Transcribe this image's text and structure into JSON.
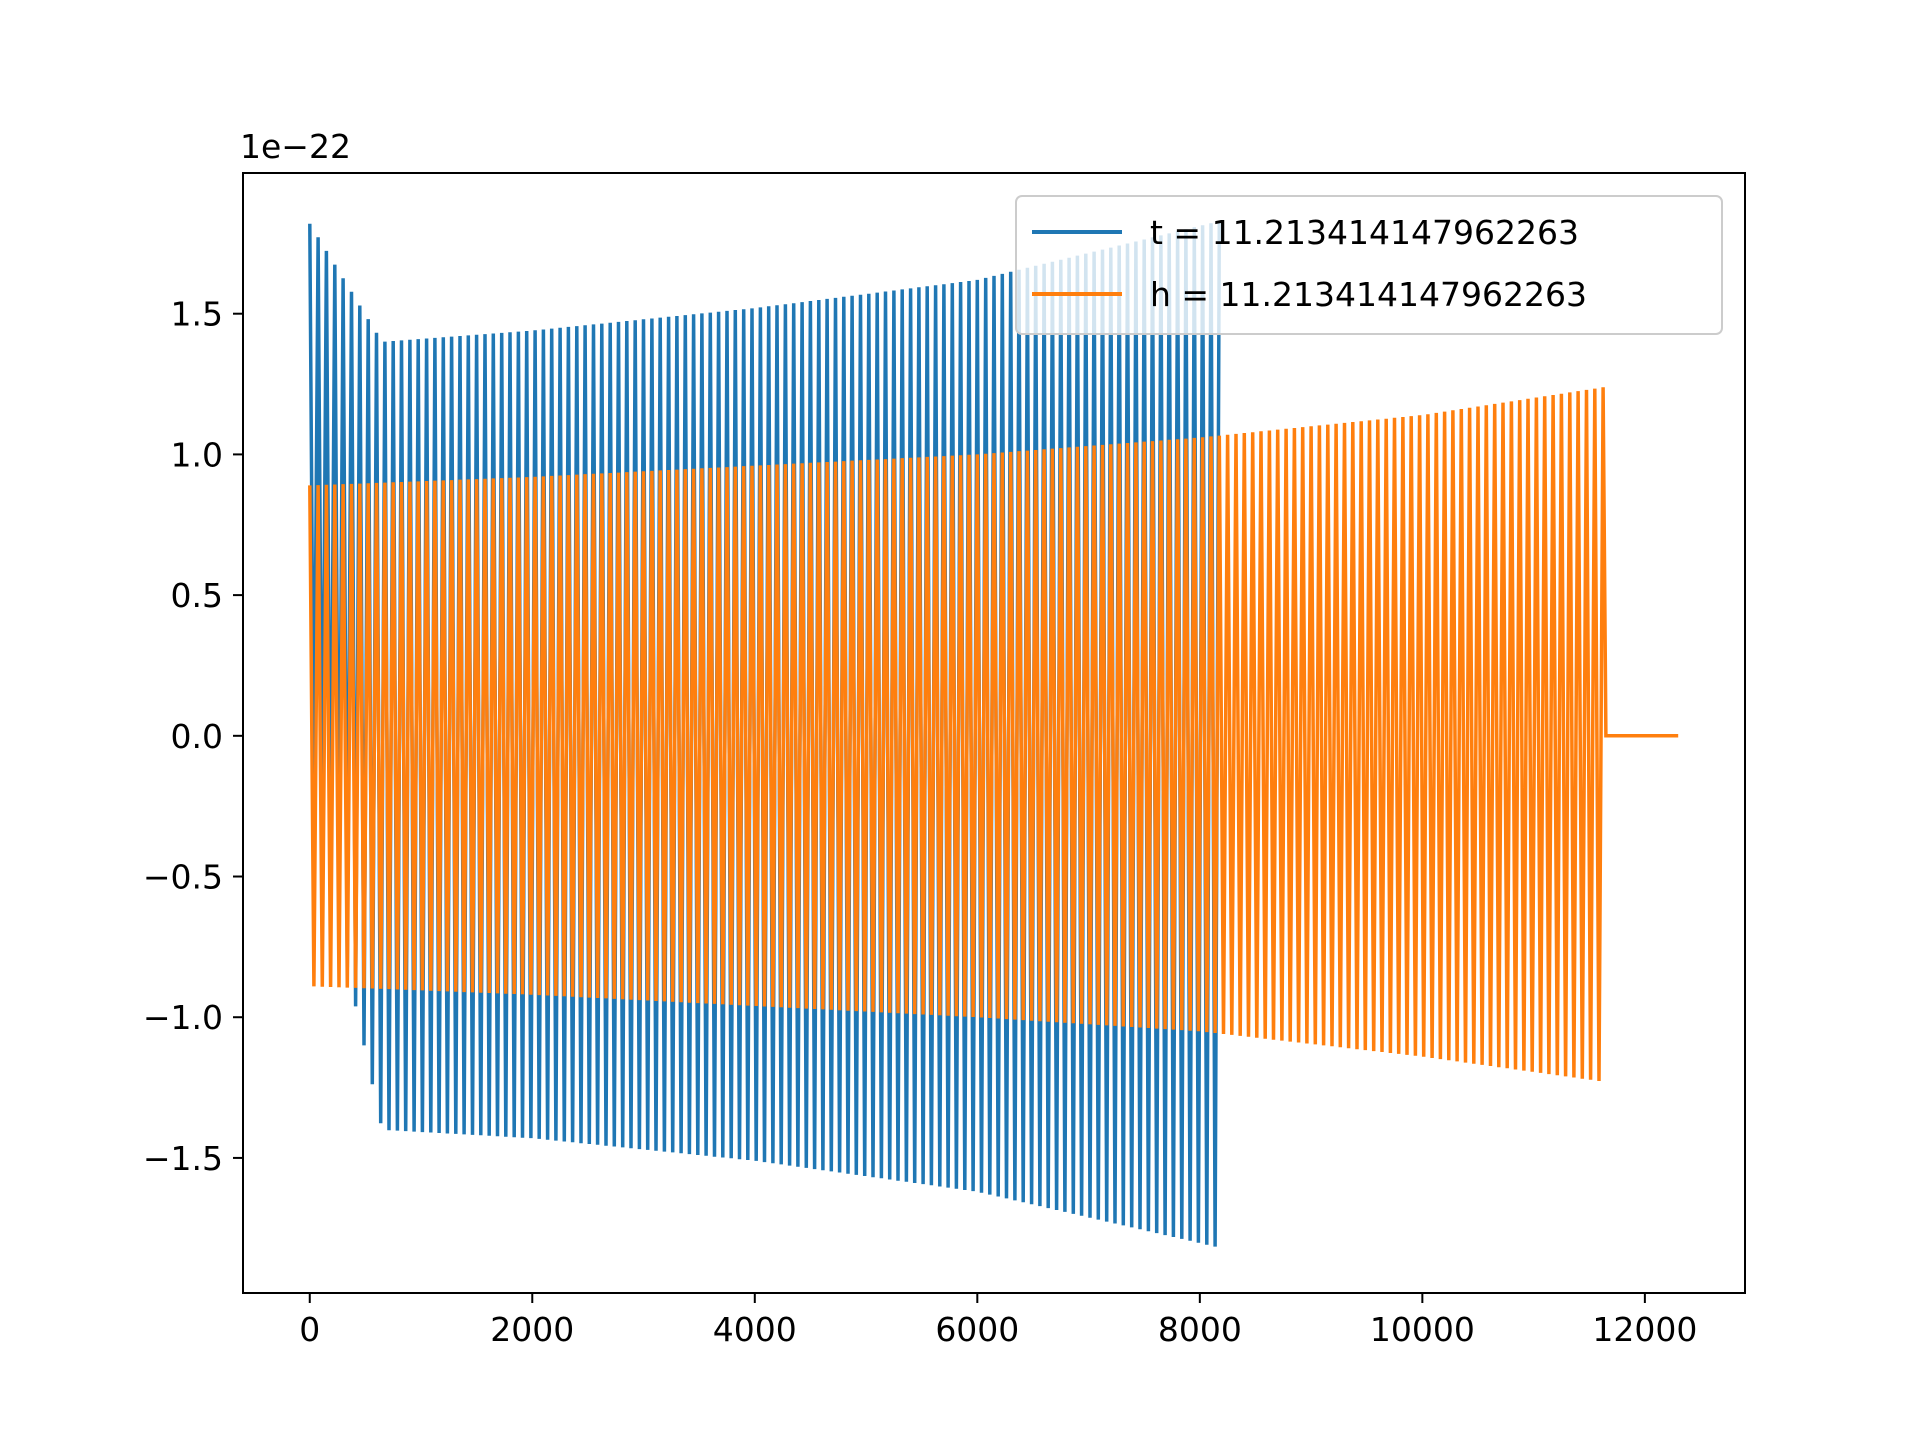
{
  "chart_data": {
    "type": "line",
    "title": "",
    "xlabel": "",
    "ylabel": "",
    "y_offset_label": "1e−22",
    "xlim": [
      -600,
      12900
    ],
    "ylim": [
      -1.98,
      2.0
    ],
    "x_ticks": [
      0,
      2000,
      4000,
      6000,
      8000,
      10000,
      12000
    ],
    "x_tick_labels": [
      "0",
      "2000",
      "4000",
      "6000",
      "8000",
      "10000",
      "12000"
    ],
    "y_ticks": [
      -1.5,
      -1.0,
      -0.5,
      0.0,
      0.5,
      1.0,
      1.5
    ],
    "y_tick_labels": [
      "−1.5",
      "−1.0",
      "−0.5",
      "0.0",
      "0.5",
      "1.0",
      "1.5"
    ],
    "grid": false,
    "legend_position": "top-right",
    "series": [
      {
        "name": "t = 11.213414147962263",
        "color": "#1f77b4",
        "signal": "oscillating waveform, amplitude envelope in units of 1e-22",
        "x_start": 0,
        "x_end": 8190,
        "envelope": [
          {
            "x": 0,
            "upper": 1.82,
            "lower": -0.2
          },
          {
            "x": 650,
            "upper": 1.4,
            "lower": -1.4
          },
          {
            "x": 2000,
            "upper": 1.44,
            "lower": -1.43
          },
          {
            "x": 4000,
            "upper": 1.52,
            "lower": -1.51
          },
          {
            "x": 6000,
            "upper": 1.62,
            "lower": -1.62
          },
          {
            "x": 8190,
            "upper": 1.83,
            "lower": -1.82
          }
        ]
      },
      {
        "name": "h = 11.213414147962263",
        "color": "#ff7f0e",
        "signal": "oscillating waveform, amplitude envelope in units of 1e-22",
        "x_start": 0,
        "x_end": 12300,
        "envelope": [
          {
            "x": 0,
            "upper": 0.89,
            "lower": -0.89
          },
          {
            "x": 700,
            "upper": 0.9,
            "lower": -0.9
          },
          {
            "x": 2000,
            "upper": 0.92,
            "lower": -0.92
          },
          {
            "x": 4000,
            "upper": 0.96,
            "lower": -0.96
          },
          {
            "x": 6000,
            "upper": 1.0,
            "lower": -1.0
          },
          {
            "x": 8000,
            "upper": 1.06,
            "lower": -1.05
          },
          {
            "x": 10000,
            "upper": 1.14,
            "lower": -1.14
          },
          {
            "x": 11650,
            "upper": 1.24,
            "lower": -1.23
          },
          {
            "x": 11660,
            "upper": 0.0,
            "lower": 0.0
          },
          {
            "x": 12300,
            "upper": 0.0,
            "lower": 0.0
          }
        ]
      }
    ]
  }
}
